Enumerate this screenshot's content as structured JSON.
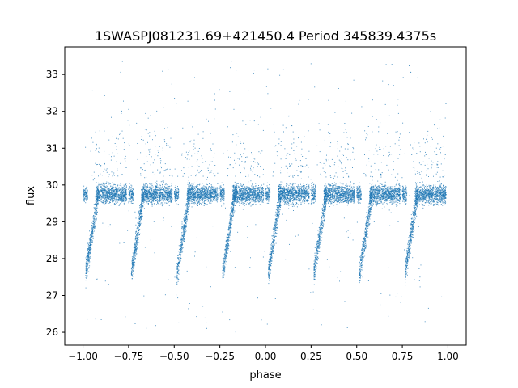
{
  "chart_data": {
    "type": "scatter",
    "title": "1SWASPJ081231.69+421450.4 Period 345839.4375s",
    "xlabel": "phase",
    "ylabel": "flux",
    "xlim": [
      -1.1,
      1.1
    ],
    "ylim": [
      25.65,
      33.75
    ],
    "x_ticks": [
      -1.0,
      -0.75,
      -0.5,
      -0.25,
      0.0,
      0.25,
      0.5,
      0.75,
      1.0
    ],
    "x_tick_labels": [
      "−1.00",
      "−0.75",
      "−0.50",
      "−0.25",
      "0.00",
      "0.25",
      "0.50",
      "0.75",
      "1.00"
    ],
    "y_ticks": [
      26,
      27,
      28,
      29,
      30,
      31,
      32,
      33
    ],
    "y_tick_labels": [
      "26",
      "27",
      "28",
      "29",
      "30",
      "31",
      "32",
      "33"
    ],
    "grid": false,
    "legend": "none",
    "marker_color": "#1f77b4",
    "series": [
      {
        "description_of_shape": "phase-folded light curve repeated over 8 cycles of width 0.25; each cycle: dense band at flux ~29.4-30.2, a rising branch from ~27.6 to ~29.8 at the start of the cycle, and sparse outliers between 26 and 33.4",
        "cycle_starts": [
          -1.0,
          -0.75,
          -0.5,
          -0.25,
          0.0,
          0.25,
          0.5,
          0.75
        ],
        "dense_band": {
          "flux_center": 29.75,
          "flux_halfwidth": 0.45
        },
        "rising_branch": {
          "flux_start": 27.6,
          "flux_end": 29.8
        },
        "outlier_range": [
          26.0,
          33.4
        ]
      }
    ]
  }
}
